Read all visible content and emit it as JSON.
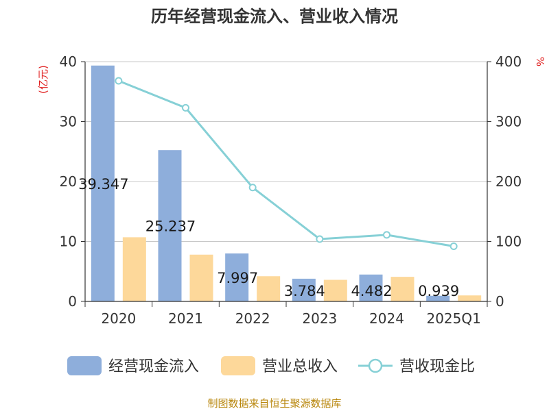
{
  "chart_data": {
    "type": "bar",
    "title": "历年经营现金流入、营业收入情况",
    "categories": [
      "2020",
      "2021",
      "2022",
      "2023",
      "2024",
      "2025Q1"
    ],
    "left_axis": {
      "unit": "(亿元)",
      "ylim": [
        0,
        40
      ],
      "ticks": [
        "0",
        "10",
        "20",
        "30",
        "40"
      ]
    },
    "right_axis": {
      "unit": "%",
      "ylim": [
        0,
        400
      ],
      "ticks": [
        "0",
        "100",
        "200",
        "300",
        "400"
      ]
    },
    "grid": true,
    "legend_position": "bottom",
    "series": [
      {
        "name": "经营现金流入",
        "kind": "bar",
        "axis": "left",
        "color": "#8eaedb",
        "values": [
          39.347,
          25.237,
          7.997,
          3.784,
          4.482,
          0.939
        ],
        "labels": [
          "39.347",
          "25.237",
          "7.997",
          "3.784",
          "4.482",
          "0.939"
        ]
      },
      {
        "name": "营业总收入",
        "kind": "bar",
        "axis": "left",
        "color": "#fdd89a",
        "values": [
          10.7,
          7.8,
          4.2,
          3.6,
          4.1,
          1.0
        ]
      },
      {
        "name": "营收现金比",
        "kind": "line",
        "axis": "right",
        "color": "#86d0d6",
        "values": [
          368,
          323,
          190,
          104,
          111,
          92
        ]
      }
    ]
  },
  "source": "制图数据来自恒生聚源数据库"
}
